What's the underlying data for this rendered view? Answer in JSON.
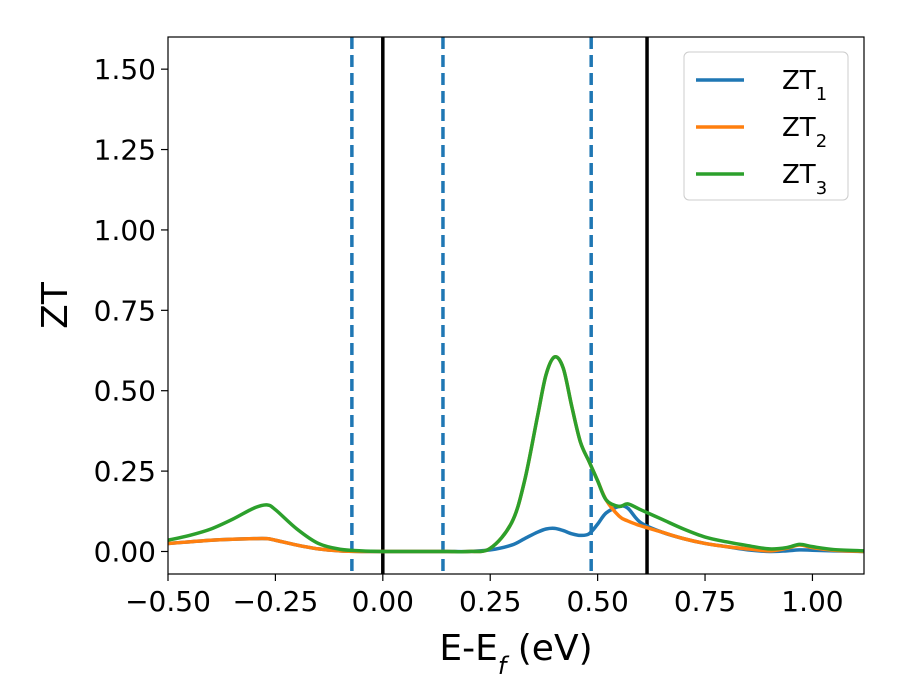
{
  "chart_data": {
    "type": "line",
    "xlabel": {
      "main": "E-E",
      "sub": "f",
      "unit": " (eV)"
    },
    "ylabel": "ZT",
    "xlim": [
      -0.5,
      1.12
    ],
    "ylim": [
      -0.07,
      1.6
    ],
    "xticks": [
      -0.5,
      -0.25,
      0.0,
      0.25,
      0.5,
      0.75,
      1.0
    ],
    "xtick_labels": [
      "−0.50",
      "−0.25",
      "0.00",
      "0.25",
      "0.50",
      "0.75",
      "1.00"
    ],
    "yticks": [
      0.0,
      0.25,
      0.5,
      0.75,
      1.0,
      1.25,
      1.5
    ],
    "ytick_labels": [
      "0.00",
      "0.25",
      "0.50",
      "0.75",
      "1.00",
      "1.25",
      "1.50"
    ],
    "grid": false,
    "legend_position": "top-right",
    "vlines": [
      {
        "x": -0.072,
        "style": "dashed",
        "color": "#1f77b4"
      },
      {
        "x": 0.0,
        "style": "solid",
        "color": "#000000"
      },
      {
        "x": 0.14,
        "style": "dashed",
        "color": "#1f77b4"
      },
      {
        "x": 0.485,
        "style": "dashed",
        "color": "#1f77b4"
      },
      {
        "x": 0.615,
        "style": "solid",
        "color": "#000000"
      }
    ],
    "x": [
      -0.5,
      -0.45,
      -0.4,
      -0.35,
      -0.3,
      -0.27,
      -0.25,
      -0.2,
      -0.15,
      -0.1,
      -0.05,
      0.0,
      0.05,
      0.1,
      0.15,
      0.2,
      0.25,
      0.3,
      0.33,
      0.36,
      0.38,
      0.4,
      0.42,
      0.44,
      0.46,
      0.48,
      0.5,
      0.52,
      0.55,
      0.57,
      0.6,
      0.65,
      0.7,
      0.75,
      0.8,
      0.85,
      0.9,
      0.94,
      0.97,
      1.0,
      1.05,
      1.12
    ],
    "series": [
      {
        "name": "ZT",
        "sub": "1",
        "color": "#1f77b4",
        "values": [
          0.025,
          0.03,
          0.035,
          0.038,
          0.04,
          0.04,
          0.035,
          0.02,
          0.008,
          0.002,
          0.0,
          0.0,
          0.0,
          0.0,
          0.0,
          0.0,
          0.005,
          0.02,
          0.04,
          0.06,
          0.07,
          0.072,
          0.065,
          0.055,
          0.05,
          0.055,
          0.085,
          0.12,
          0.14,
          0.135,
          0.09,
          0.06,
          0.04,
          0.025,
          0.015,
          0.005,
          0.0,
          0.002,
          0.005,
          0.004,
          0.002,
          0.0
        ]
      },
      {
        "name": "ZT",
        "sub": "2",
        "color": "#ff7f0e",
        "values": [
          0.025,
          0.03,
          0.035,
          0.038,
          0.04,
          0.04,
          0.035,
          0.02,
          0.008,
          0.002,
          0.0,
          0.0,
          0.0,
          0.0,
          0.0,
          0.0,
          0.01,
          0.09,
          0.22,
          0.42,
          0.55,
          0.605,
          0.57,
          0.45,
          0.34,
          0.28,
          0.22,
          0.16,
          0.11,
          0.095,
          0.08,
          0.06,
          0.04,
          0.025,
          0.015,
          0.008,
          0.002,
          0.01,
          0.02,
          0.012,
          0.004,
          0.0
        ]
      },
      {
        "name": "ZT",
        "sub": "3",
        "color": "#2ca02c",
        "values": [
          0.035,
          0.05,
          0.07,
          0.1,
          0.135,
          0.145,
          0.13,
          0.07,
          0.025,
          0.007,
          0.002,
          0.0,
          0.0,
          0.0,
          0.0,
          0.0,
          0.01,
          0.09,
          0.22,
          0.42,
          0.55,
          0.605,
          0.57,
          0.45,
          0.34,
          0.28,
          0.22,
          0.16,
          0.14,
          0.148,
          0.13,
          0.1,
          0.07,
          0.045,
          0.03,
          0.018,
          0.008,
          0.012,
          0.022,
          0.015,
          0.006,
          0.002
        ]
      }
    ]
  }
}
